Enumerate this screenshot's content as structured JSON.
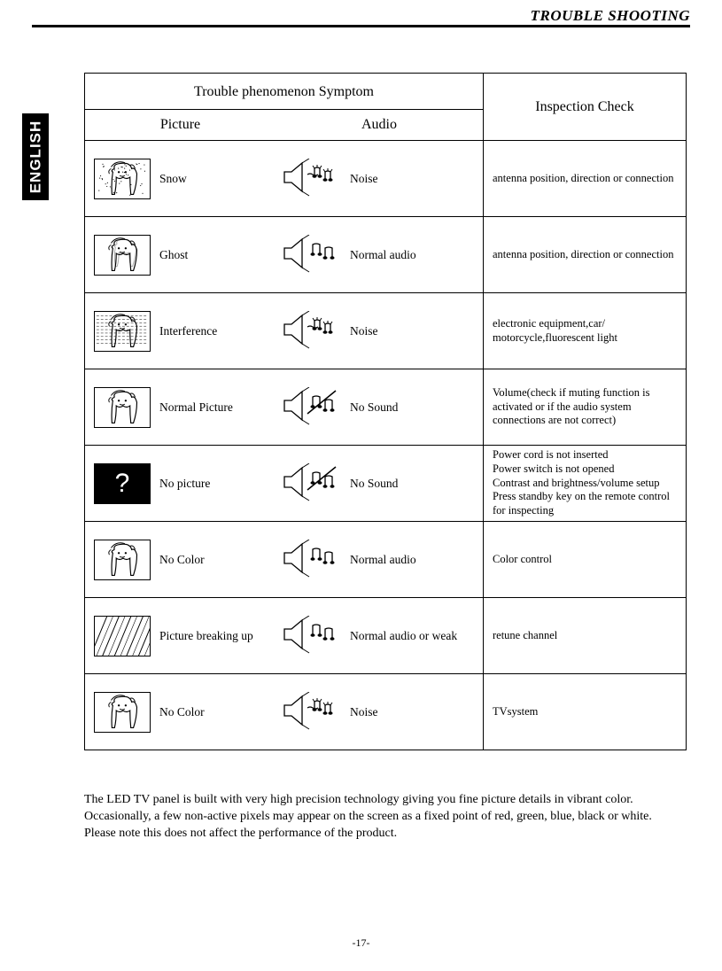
{
  "header": {
    "title": "TROUBLE SHOOTING"
  },
  "lang": "ENGLISH",
  "table": {
    "symptomHeader": "Trouble phenomenon Symptom",
    "pictureHeader": "Picture",
    "audioHeader": "Audio",
    "inspectionHeader": "Inspection Check"
  },
  "rows": [
    {
      "picLabel": "Snow",
      "audLabel": "Noise",
      "check": "antenna position, direction or connection",
      "picIcon": "snow",
      "audIcon": "noise"
    },
    {
      "picLabel": "Ghost",
      "audLabel": "Normal audio",
      "check": "antenna position, direction or connection",
      "picIcon": "ghost",
      "audIcon": "normal"
    },
    {
      "picLabel": "Interference",
      "audLabel": "Noise",
      "check": "electronic equipment,car/ motorcycle,fluorescent light",
      "picIcon": "interference",
      "audIcon": "noise"
    },
    {
      "picLabel": "Normal Picture",
      "audLabel": "No Sound",
      "check": "Volume(check if muting function is activated or if the audio system connections are  not correct)",
      "picIcon": "normal",
      "audIcon": "nosound"
    },
    {
      "picLabel": "No picture",
      "audLabel": "No Sound",
      "check": "Power cord is not inserted\nPower switch is not opened\nContrast and brightness/volume setup\nPress standby key on the remote control for inspecting",
      "picIcon": "nopicture",
      "audIcon": "nosound"
    },
    {
      "picLabel": "No Color",
      "audLabel": "Normal audio",
      "check": "Color control",
      "picIcon": "normal",
      "audIcon": "normal"
    },
    {
      "picLabel": "Picture breaking up",
      "audLabel": " Normal audio or weak",
      "check": "retune channel",
      "picIcon": "breaking",
      "audIcon": "normal"
    },
    {
      "picLabel": "No Color",
      "audLabel": "Noise",
      "check": "TVsystem",
      "picIcon": "normal",
      "audIcon": "noise"
    }
  ],
  "footnote": "The LED TV panel is built with very high precision technology giving you fine picture details in vibrant color.  Occasionally, a few non-active pixels may appear on the screen as a fixed point of red, green, blue, black or white.  Please note this does not affect the performance of the product.",
  "page": "-17-",
  "colors": {
    "black": "#000000",
    "white": "#ffffff"
  }
}
